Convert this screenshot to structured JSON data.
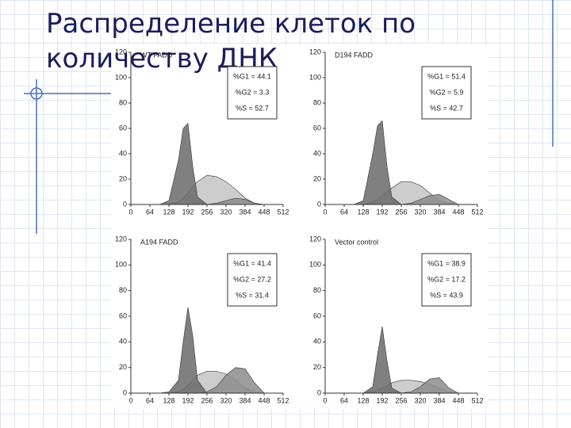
{
  "title": "Распределение клеток по количеству ДНК",
  "chart_data": [
    {
      "type": "area",
      "label": "WT FADD",
      "annotations": [
        "%G1 = 44.1",
        "%G2 = 3.3",
        "%S = 52.7"
      ],
      "x": [
        96,
        128,
        160,
        176,
        192,
        208,
        224,
        256,
        288,
        320,
        352,
        384,
        416,
        448
      ],
      "series": [
        {
          "color": "#c4c4c4",
          "values": [
            0,
            0,
            2,
            5,
            9,
            14,
            18,
            23,
            22,
            18,
            12,
            5,
            1,
            0
          ]
        },
        {
          "color": "#8c8c8c",
          "values": [
            0,
            0,
            0,
            0,
            0,
            0,
            0,
            0,
            1,
            3,
            5,
            4,
            1,
            0
          ]
        },
        {
          "color": "#6a6a6a",
          "values": [
            0,
            3,
            35,
            60,
            64,
            30,
            6,
            0,
            0,
            0,
            0,
            0,
            0,
            0
          ]
        }
      ],
      "xlim": [
        0,
        512
      ],
      "xticks": [
        0,
        64,
        128,
        192,
        256,
        320,
        384,
        448,
        512
      ],
      "ylim": [
        0,
        120
      ],
      "yticks": [
        0,
        20,
        40,
        60,
        80,
        100,
        120
      ]
    },
    {
      "type": "area",
      "label": "D194 FADD",
      "annotations": [
        "%G1 = 51.4",
        "%G2 = 5.9",
        "%S = 42.7"
      ],
      "x": [
        96,
        128,
        160,
        176,
        192,
        208,
        224,
        256,
        288,
        320,
        352,
        384,
        416,
        448
      ],
      "series": [
        {
          "color": "#c4c4c4",
          "values": [
            0,
            0,
            2,
            4,
            7,
            10,
            13,
            18,
            18,
            15,
            9,
            3,
            1,
            0
          ]
        },
        {
          "color": "#8c8c8c",
          "values": [
            0,
            0,
            0,
            0,
            0,
            0,
            0,
            0,
            1,
            4,
            7,
            8,
            4,
            0
          ]
        },
        {
          "color": "#6a6a6a",
          "values": [
            0,
            3,
            40,
            62,
            66,
            30,
            6,
            0,
            0,
            0,
            0,
            0,
            0,
            0
          ]
        }
      ],
      "xlim": [
        0,
        512
      ],
      "xticks": [
        0,
        64,
        128,
        192,
        256,
        320,
        384,
        448,
        512
      ],
      "ylim": [
        0,
        120
      ],
      "yticks": [
        0,
        20,
        40,
        60,
        80,
        100,
        120
      ]
    },
    {
      "type": "area",
      "label": "A194 FADD",
      "annotations": [
        "%G1 = 41.4",
        "%G2 = 27.2",
        "%S = 31.4"
      ],
      "x": [
        96,
        128,
        160,
        176,
        192,
        208,
        224,
        256,
        288,
        320,
        352,
        384,
        416,
        448
      ],
      "series": [
        {
          "color": "#c4c4c4",
          "values": [
            0,
            0,
            1,
            3,
            6,
            10,
            14,
            17,
            17,
            15,
            10,
            4,
            1,
            0
          ]
        },
        {
          "color": "#8c8c8c",
          "values": [
            0,
            0,
            0,
            0,
            0,
            0,
            0,
            1,
            5,
            14,
            20,
            19,
            8,
            0
          ]
        },
        {
          "color": "#6a6a6a",
          "values": [
            0,
            1,
            10,
            40,
            67,
            45,
            10,
            0,
            0,
            0,
            0,
            0,
            0,
            0
          ]
        }
      ],
      "xlim": [
        0,
        512
      ],
      "xticks": [
        0,
        64,
        128,
        192,
        256,
        320,
        384,
        448,
        512
      ],
      "ylim": [
        0,
        120
      ],
      "yticks": [
        0,
        20,
        40,
        60,
        80,
        100,
        120
      ]
    },
    {
      "type": "area",
      "label": "Vector control",
      "annotations": [
        "%G1 = 38.9",
        "%G2 = 17.2",
        "%S = 43.9"
      ],
      "x": [
        96,
        128,
        160,
        176,
        192,
        208,
        224,
        256,
        288,
        320,
        352,
        384,
        416,
        448
      ],
      "series": [
        {
          "color": "#c4c4c4",
          "values": [
            0,
            0,
            1,
            2,
            4,
            6,
            8,
            10,
            10,
            9,
            7,
            4,
            1,
            0
          ]
        },
        {
          "color": "#8c8c8c",
          "values": [
            0,
            0,
            0,
            0,
            0,
            0,
            0,
            0,
            1,
            5,
            11,
            12,
            4,
            0
          ]
        },
        {
          "color": "#6a6a6a",
          "values": [
            0,
            0,
            5,
            30,
            52,
            25,
            4,
            0,
            0,
            0,
            0,
            0,
            0,
            0
          ]
        }
      ],
      "xlim": [
        0,
        512
      ],
      "xticks": [
        0,
        64,
        128,
        192,
        256,
        320,
        384,
        448,
        512
      ],
      "ylim": [
        0,
        120
      ],
      "yticks": [
        0,
        20,
        40,
        60,
        80,
        100,
        120
      ]
    }
  ]
}
